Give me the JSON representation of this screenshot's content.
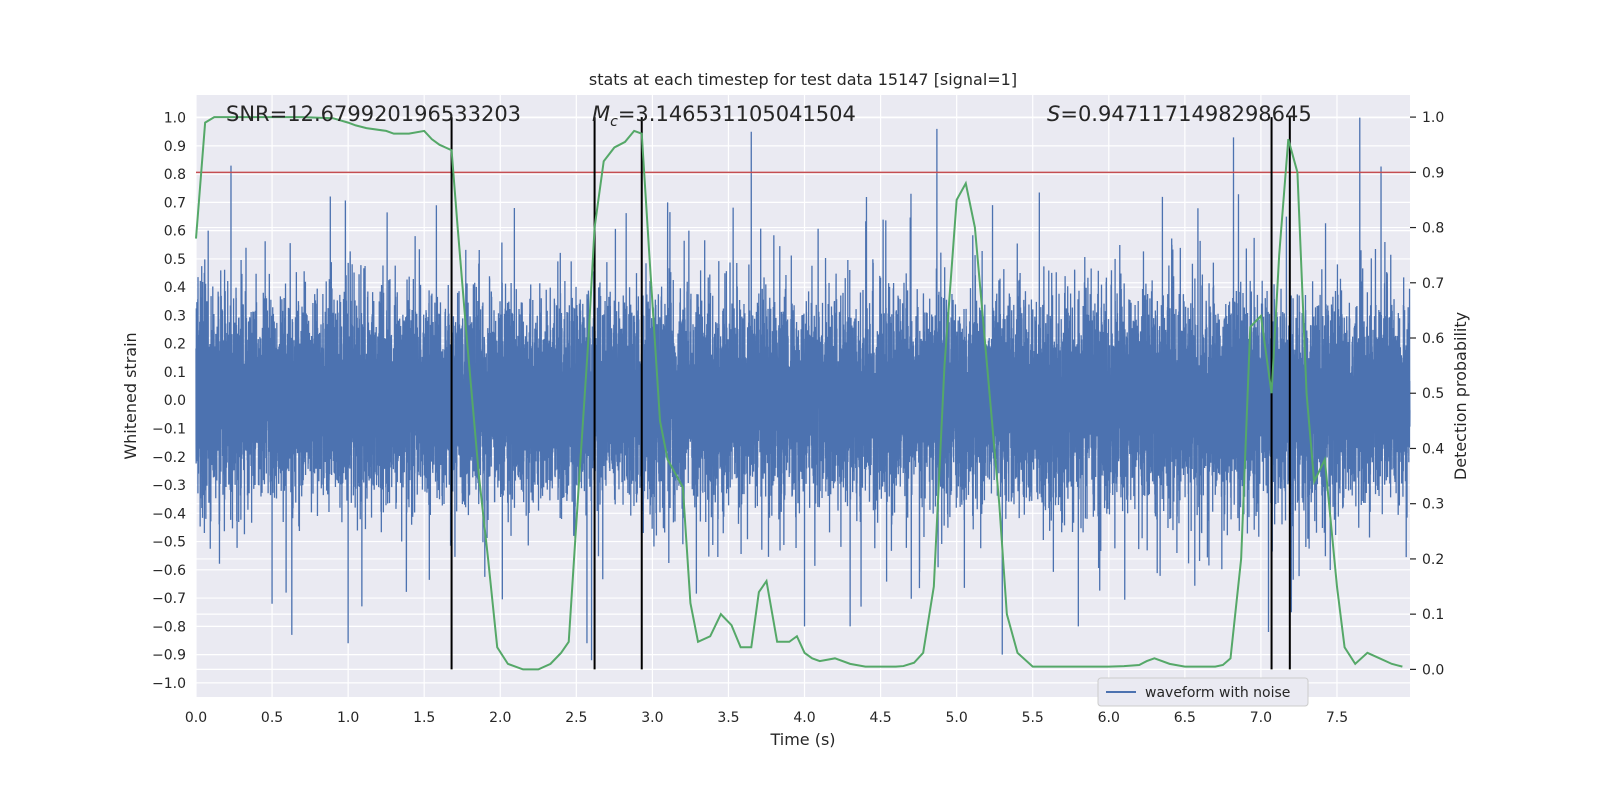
{
  "chart_data": {
    "type": "line",
    "title": "stats at each timestep for test data 15147 [signal=1]",
    "xlabel": "Time (s)",
    "ylabel_left": "Whitened strain",
    "ylabel_right": "Detection probability",
    "xlim": [
      0,
      7.98
    ],
    "ylim_left": [
      -1.05,
      1.08
    ],
    "ylim_right": [
      -0.05,
      1.04
    ],
    "x_ticks": [
      0.0,
      0.5,
      1.0,
      1.5,
      2.0,
      2.5,
      3.0,
      3.5,
      4.0,
      4.5,
      5.0,
      5.5,
      6.0,
      6.5,
      7.0,
      7.5
    ],
    "x_tick_labels": [
      "0.0",
      "0.5",
      "1.0",
      "1.5",
      "2.0",
      "2.5",
      "3.0",
      "3.5",
      "4.0",
      "4.5",
      "5.0",
      "5.5",
      "6.0",
      "6.5",
      "7.0",
      "7.5"
    ],
    "left_ticks": [
      1.0,
      0.9,
      0.8,
      0.7,
      0.6,
      0.5,
      0.4,
      0.3,
      0.2,
      0.1,
      0.0,
      -0.1,
      -0.2,
      -0.3,
      -0.4,
      -0.5,
      -0.6,
      -0.7,
      -0.8,
      -0.9,
      -1.0
    ],
    "left_tick_labels": [
      "1.0",
      "0.9",
      "0.8",
      "0.7",
      "0.6",
      "0.5",
      "0.4",
      "0.3",
      "0.2",
      "0.1",
      "0.0",
      "−0.1",
      "−0.2",
      "−0.3",
      "−0.4",
      "−0.5",
      "−0.6",
      "−0.7",
      "−0.8",
      "−0.9",
      "−1.0"
    ],
    "right_ticks": [
      1.0,
      0.9,
      0.8,
      0.7,
      0.6,
      0.5,
      0.4,
      0.3,
      0.2,
      0.1,
      0.0
    ],
    "right_tick_labels": [
      "1.0",
      "0.9",
      "0.8",
      "0.7",
      "0.6",
      "0.5",
      "0.4",
      "0.3",
      "0.2",
      "0.1",
      "0.0"
    ],
    "grid": true,
    "annotations": {
      "snr": "SNR=12.679920196533203",
      "mc_prefix": "M",
      "mc_sub": "c",
      "mc_value": "=3.146531105041504",
      "s_prefix": "S",
      "s_value": "=0.9471171498298645"
    },
    "legend": {
      "placement": "lower-right",
      "label": "waveform with noise"
    },
    "threshold": {
      "axis": "right",
      "value": 0.9,
      "color": "#c44e52"
    },
    "vlines": [
      1.68,
      2.62,
      2.93,
      7.07,
      7.19
    ],
    "colors": {
      "strain": "#4c72b0",
      "probability": "#55a868",
      "threshold": "#c44e52",
      "vline": "#000000",
      "panel": "#eaeaf2"
    },
    "strain": {
      "sample_rate": 2048,
      "duration": 7.98,
      "envelope": 0.42,
      "peaks": [
        {
          "t": 0.08,
          "v": 0.6
        },
        {
          "t": 0.23,
          "v": 0.83
        },
        {
          "t": 0.63,
          "v": -0.83
        },
        {
          "t": 1.0,
          "v": -0.86
        },
        {
          "t": 1.58,
          "v": 0.69
        },
        {
          "t": 2.57,
          "v": -0.86
        },
        {
          "t": 2.6,
          "v": -0.92
        },
        {
          "t": 2.93,
          "v": -0.69
        },
        {
          "t": 3.1,
          "v": 0.7
        },
        {
          "t": 3.65,
          "v": 0.95
        },
        {
          "t": 4.3,
          "v": -0.8
        },
        {
          "t": 4.87,
          "v": 0.96
        },
        {
          "t": 5.3,
          "v": -0.9
        },
        {
          "t": 5.8,
          "v": -0.8
        },
        {
          "t": 6.82,
          "v": 0.93
        },
        {
          "t": 7.05,
          "v": -0.82
        },
        {
          "t": 7.65,
          "v": 1.0
        },
        {
          "t": 7.2,
          "v": -0.75
        },
        {
          "t": 0.5,
          "v": -0.72
        },
        {
          "t": 4.0,
          "v": -0.8
        }
      ]
    },
    "probability": {
      "x": [
        0.0,
        0.06,
        0.12,
        0.3,
        0.5,
        0.7,
        0.9,
        1.0,
        1.05,
        1.12,
        1.25,
        1.3,
        1.4,
        1.5,
        1.55,
        1.6,
        1.68,
        1.72,
        1.78,
        1.86,
        1.92,
        1.98,
        2.05,
        2.15,
        2.25,
        2.33,
        2.4,
        2.45,
        2.52,
        2.58,
        2.62,
        2.68,
        2.75,
        2.82,
        2.88,
        2.93,
        2.98,
        3.05,
        3.1,
        3.2,
        3.25,
        3.3,
        3.38,
        3.45,
        3.52,
        3.58,
        3.65,
        3.7,
        3.75,
        3.82,
        3.9,
        3.95,
        4.0,
        4.05,
        4.1,
        4.2,
        4.3,
        4.4,
        4.5,
        4.6,
        4.65,
        4.72,
        4.78,
        4.85,
        4.92,
        5.0,
        5.06,
        5.12,
        5.2,
        5.28,
        5.33,
        5.4,
        5.5,
        5.6,
        5.7,
        5.8,
        5.9,
        6.0,
        6.1,
        6.2,
        6.25,
        6.3,
        6.4,
        6.5,
        6.6,
        6.7,
        6.75,
        6.8,
        6.87,
        6.93,
        7.0,
        7.07,
        7.12,
        7.18,
        7.24,
        7.3,
        7.35,
        7.42,
        7.5,
        7.55,
        7.62,
        7.7,
        7.78,
        7.86,
        7.93
      ],
      "y": [
        0.78,
        0.99,
        1.0,
        1.0,
        1.0,
        1.0,
        0.998,
        0.99,
        0.985,
        0.98,
        0.975,
        0.97,
        0.97,
        0.975,
        0.96,
        0.95,
        0.94,
        0.8,
        0.6,
        0.35,
        0.2,
        0.04,
        0.01,
        0.0,
        0.0,
        0.01,
        0.03,
        0.05,
        0.35,
        0.6,
        0.8,
        0.92,
        0.945,
        0.955,
        0.975,
        0.97,
        0.75,
        0.45,
        0.38,
        0.33,
        0.12,
        0.05,
        0.06,
        0.1,
        0.08,
        0.04,
        0.04,
        0.14,
        0.16,
        0.05,
        0.05,
        0.06,
        0.03,
        0.02,
        0.015,
        0.02,
        0.01,
        0.005,
        0.005,
        0.005,
        0.006,
        0.012,
        0.03,
        0.15,
        0.55,
        0.85,
        0.88,
        0.8,
        0.55,
        0.3,
        0.1,
        0.03,
        0.005,
        0.005,
        0.005,
        0.005,
        0.005,
        0.005,
        0.006,
        0.008,
        0.015,
        0.02,
        0.01,
        0.005,
        0.005,
        0.005,
        0.008,
        0.02,
        0.2,
        0.62,
        0.64,
        0.5,
        0.75,
        0.96,
        0.9,
        0.5,
        0.34,
        0.38,
        0.15,
        0.04,
        0.01,
        0.03,
        0.02,
        0.01,
        0.005
      ]
    }
  }
}
